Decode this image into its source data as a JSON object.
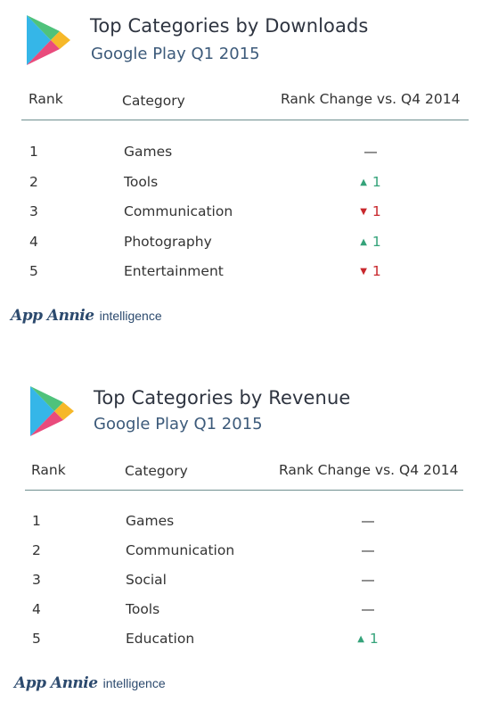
{
  "chart_data": [
    {
      "type": "table",
      "title": "Top Categories by Downloads",
      "subtitle": "Google Play Q1 2015",
      "columns": [
        "Rank",
        "Category",
        "Rank Change vs. Q4 2014"
      ],
      "rows": [
        {
          "rank": "1",
          "category": "Games",
          "direction": "same",
          "change": "—"
        },
        {
          "rank": "2",
          "category": "Tools",
          "direction": "up",
          "change": "1"
        },
        {
          "rank": "3",
          "category": "Communication",
          "direction": "down",
          "change": "1"
        },
        {
          "rank": "4",
          "category": "Photography",
          "direction": "up",
          "change": "1"
        },
        {
          "rank": "5",
          "category": "Entertainment",
          "direction": "down",
          "change": "1"
        }
      ]
    },
    {
      "type": "table",
      "title": "Top Categories by Revenue",
      "subtitle": "Google Play Q1 2015",
      "columns": [
        "Rank",
        "Category",
        "Rank Change vs. Q4 2014"
      ],
      "rows": [
        {
          "rank": "1",
          "category": "Games",
          "direction": "same",
          "change": "—"
        },
        {
          "rank": "2",
          "category": "Communication",
          "direction": "same",
          "change": "—"
        },
        {
          "rank": "3",
          "category": "Social",
          "direction": "same",
          "change": "—"
        },
        {
          "rank": "4",
          "category": "Tools",
          "direction": "same",
          "change": "—"
        },
        {
          "rank": "5",
          "category": "Education",
          "direction": "up",
          "change": "1"
        }
      ]
    }
  ],
  "brand": {
    "logo_text": "App Annie",
    "tagline": "intelligence",
    "color": "#2c4a6e"
  },
  "icons": {
    "store_logo": "google-play-icon",
    "up": "triangle-up-icon",
    "down": "triangle-down-icon"
  },
  "colors": {
    "up": "#35a37a",
    "down": "#c8282d",
    "rule": "#6f8f8f"
  }
}
